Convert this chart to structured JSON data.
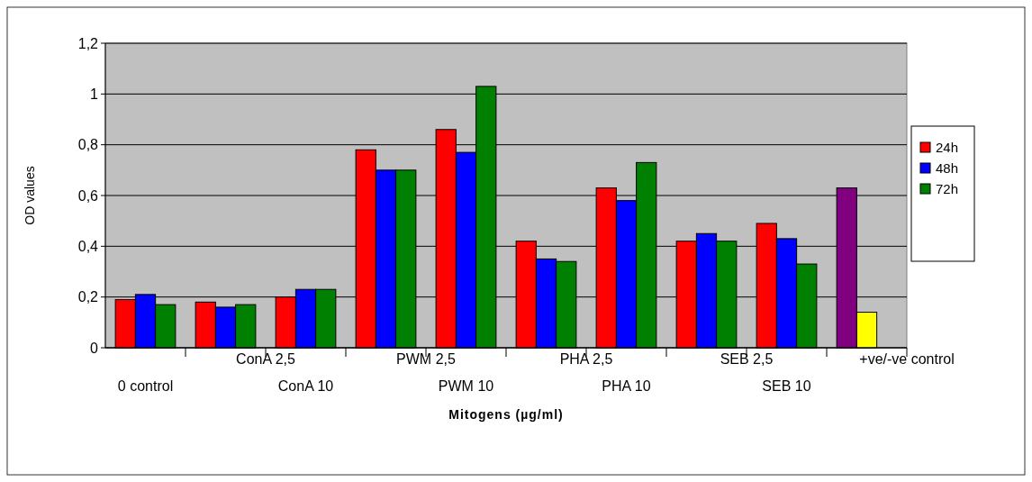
{
  "chart_data": {
    "type": "bar",
    "xlabel": "Mitogens (µg/ml)",
    "ylabel": "OD values",
    "categories": [
      "0 control",
      "ConA 2,5",
      "ConA 10",
      "PWM 2,5",
      "PWM 10",
      "PHA 2,5",
      "PHA 10",
      "SEB 2,5",
      "SEB 10",
      "+ve/-ve control"
    ],
    "series": [
      {
        "name": "24h",
        "color": "#ff0000",
        "colors": [
          "#ff0000",
          "#ff0000",
          "#ff0000",
          "#ff0000",
          "#ff0000",
          "#ff0000",
          "#ff0000",
          "#ff0000",
          "#ff0000",
          "#800080"
        ],
        "values": [
          0.19,
          0.18,
          0.2,
          0.78,
          0.86,
          0.42,
          0.63,
          0.42,
          0.49,
          0.63
        ]
      },
      {
        "name": "48h",
        "color": "#0000ff",
        "colors": [
          "#0000ff",
          "#0000ff",
          "#0000ff",
          "#0000ff",
          "#0000ff",
          "#0000ff",
          "#0000ff",
          "#0000ff",
          "#0000ff",
          "#ffff00"
        ],
        "values": [
          0.21,
          0.16,
          0.23,
          0.7,
          0.77,
          0.35,
          0.58,
          0.45,
          0.43,
          0.14
        ]
      },
      {
        "name": "72h",
        "color": "#008000",
        "values": [
          0.17,
          0.17,
          0.23,
          0.7,
          1.03,
          0.34,
          0.73,
          0.42,
          0.33,
          null
        ]
      }
    ],
    "ylim": [
      0,
      1.2
    ],
    "yticks": [
      0,
      {
        "value": 0.2,
        "label": "0,2"
      },
      {
        "value": 0.4,
        "label": "0,4"
      },
      {
        "value": 0.6,
        "label": "0,6"
      },
      {
        "value": 0.8,
        "label": "0,8"
      },
      1,
      {
        "value": 1.2,
        "label": "1,2"
      }
    ],
    "grid": "y",
    "legend": "right"
  }
}
